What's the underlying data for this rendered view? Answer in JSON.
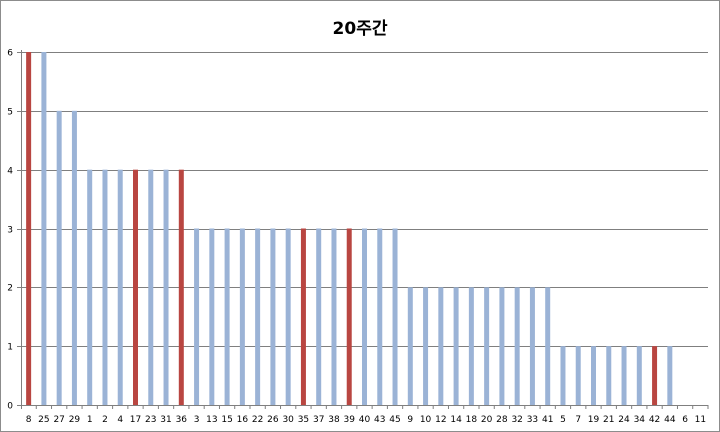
{
  "chart_data": {
    "type": "bar",
    "title": "20주간",
    "xlabel": "",
    "ylabel": "",
    "ylim": [
      0,
      6
    ],
    "yticks": [
      0,
      1,
      2,
      3,
      4,
      5,
      6
    ],
    "grid": true,
    "categories": [
      "8",
      "25",
      "27",
      "29",
      "1",
      "2",
      "4",
      "17",
      "23",
      "31",
      "36",
      "3",
      "13",
      "15",
      "16",
      "22",
      "26",
      "30",
      "35",
      "37",
      "38",
      "39",
      "40",
      "43",
      "45",
      "9",
      "10",
      "12",
      "14",
      "18",
      "20",
      "28",
      "32",
      "33",
      "41",
      "5",
      "7",
      "19",
      "21",
      "24",
      "34",
      "42",
      "44",
      "6",
      "11"
    ],
    "values": [
      6,
      6,
      5,
      5,
      4,
      4,
      4,
      4,
      4,
      4,
      4,
      3,
      3,
      3,
      3,
      3,
      3,
      3,
      3,
      3,
      3,
      3,
      3,
      3,
      3,
      2,
      2,
      2,
      2,
      2,
      2,
      2,
      2,
      2,
      2,
      1,
      1,
      1,
      1,
      1,
      1,
      1,
      1,
      0,
      0
    ],
    "highlighted": [
      "8",
      "17",
      "36",
      "35",
      "39",
      "42"
    ],
    "colors": {
      "default": "#9bb3d6",
      "highlight": "#b94641",
      "grid": "#7f7f7f"
    }
  }
}
